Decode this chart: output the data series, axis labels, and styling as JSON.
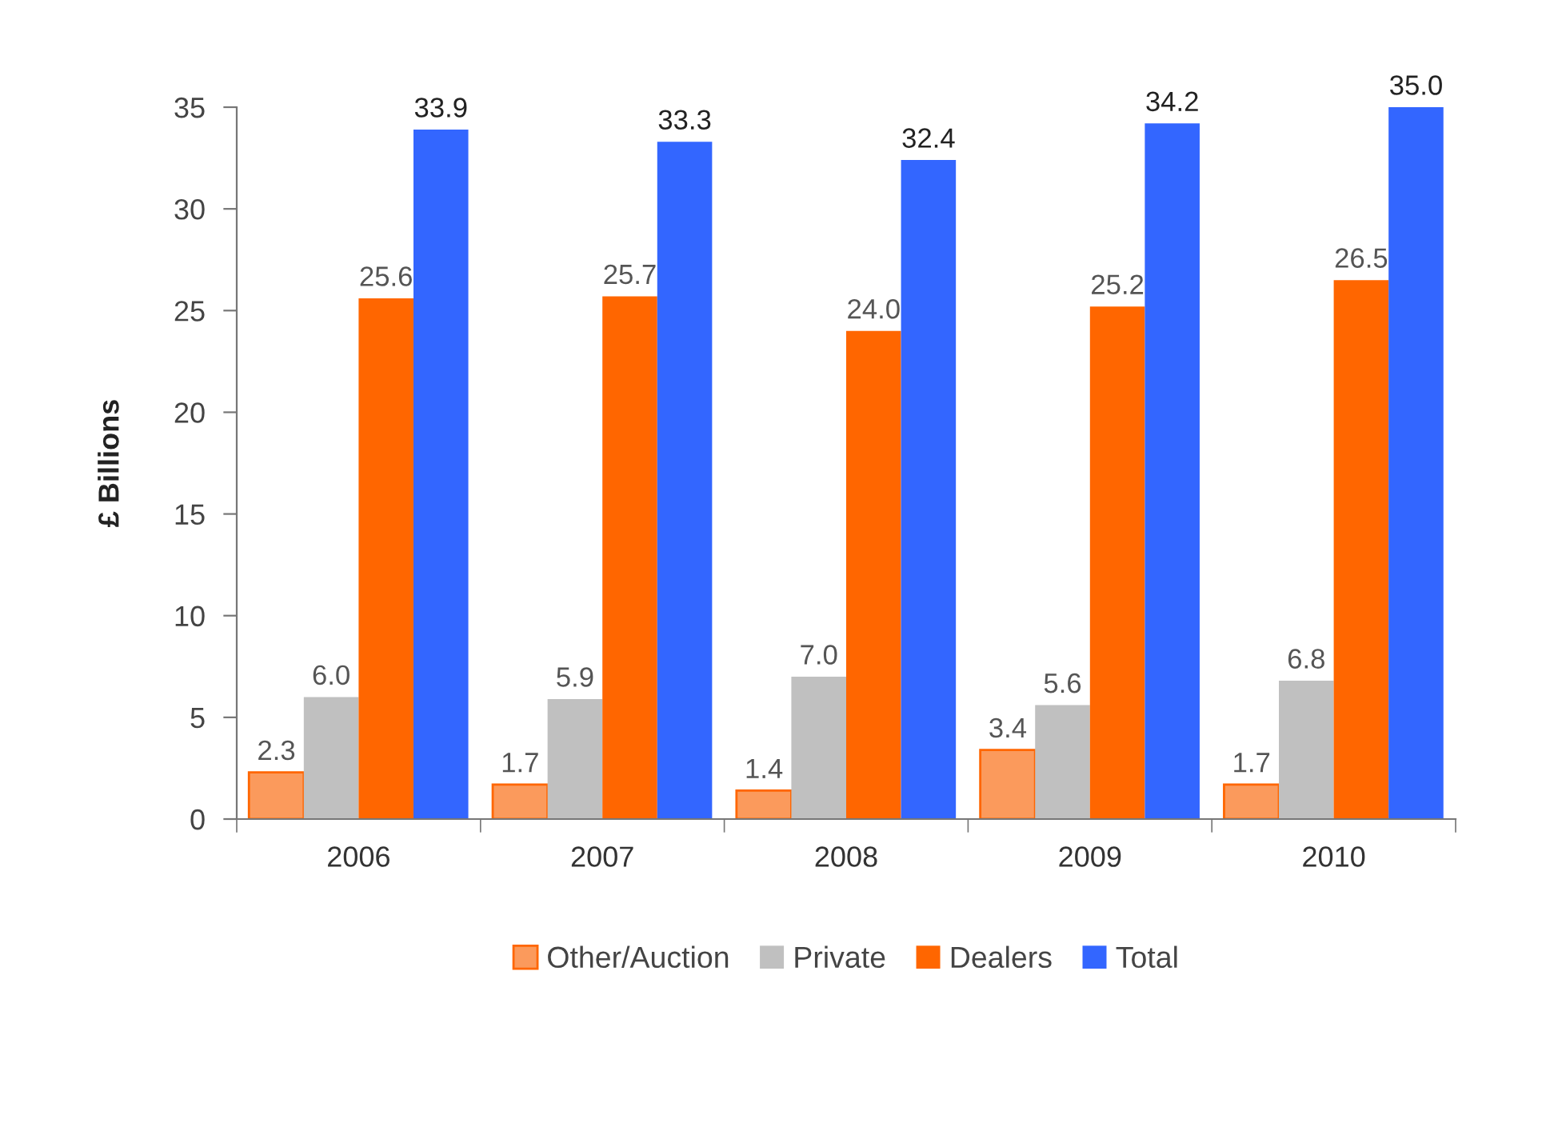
{
  "chart_data": {
    "type": "bar",
    "ylabel": "£ Billions",
    "categories": [
      "2006",
      "2007",
      "2008",
      "2009",
      "2010"
    ],
    "series": [
      {
        "name": "Other/Auction",
        "color": "#fb9a5c",
        "values": [
          2.3,
          1.7,
          1.4,
          3.4,
          1.7
        ],
        "value_labels": [
          "2.3",
          "1.7",
          "1.4",
          "3.4",
          "1.7"
        ]
      },
      {
        "name": "Private",
        "color": "#c0c0c0",
        "values": [
          6.0,
          5.9,
          7.0,
          5.6,
          6.8
        ],
        "value_labels": [
          "6.0",
          "5.9",
          "7.0",
          "5.6",
          "6.8"
        ]
      },
      {
        "name": "Dealers",
        "color": "#ff6600",
        "values": [
          25.6,
          25.7,
          24.0,
          25.2,
          26.5
        ],
        "value_labels": [
          "25.6",
          "25.7",
          "24.0",
          "25.2",
          "26.5"
        ]
      },
      {
        "name": "Total",
        "color": "#3366ff",
        "values": [
          33.9,
          33.3,
          32.4,
          34.2,
          35.0
        ],
        "value_labels": [
          "33.9",
          "33.3",
          "32.4",
          "34.2",
          "35.0"
        ]
      }
    ],
    "ylim": [
      0,
      35
    ],
    "yticks": [
      0,
      5,
      10,
      15,
      20,
      25,
      30,
      35
    ],
    "grid": false,
    "legend": "bottom"
  }
}
